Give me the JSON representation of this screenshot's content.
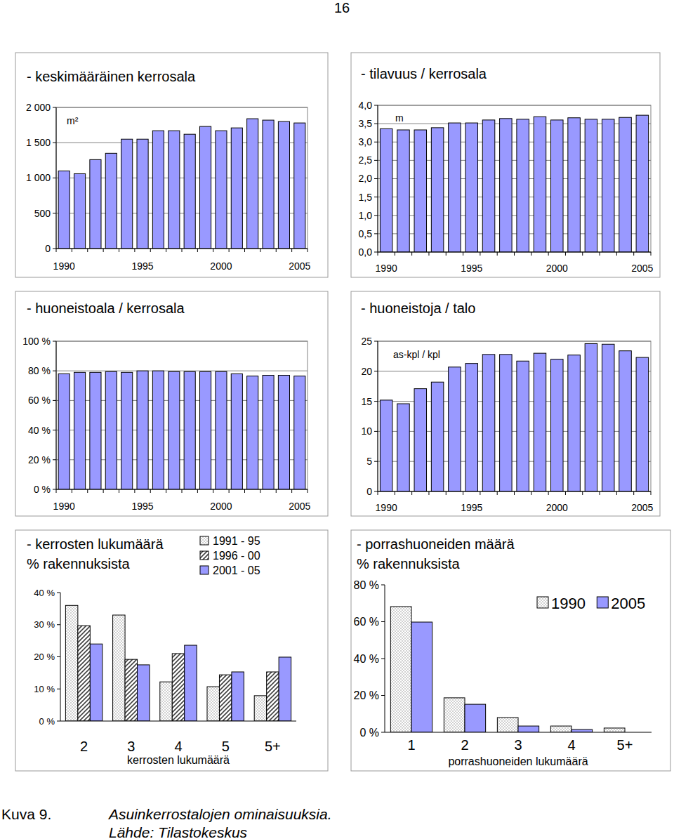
{
  "page": {
    "number": "16",
    "caption_label": "Kuva 9.",
    "caption": "Asuinkerrostalojen ominaisuuksia.",
    "source": "Lähde: Tilastokeskus"
  },
  "chart_data": [
    {
      "type": "bar",
      "title": "- keskimääräinen kerrosala",
      "y_label": "m²",
      "categories": [
        "1990",
        null,
        null,
        null,
        null,
        "1995",
        null,
        null,
        null,
        null,
        "2000",
        null,
        null,
        null,
        null,
        "2005"
      ],
      "values": [
        1100,
        1060,
        1260,
        1350,
        1550,
        1550,
        1670,
        1670,
        1620,
        1730,
        1670,
        1710,
        1840,
        1820,
        1800,
        1780
      ],
      "color": "#9999ff",
      "ylim": [
        0,
        2000
      ],
      "yticks": [
        0,
        500,
        {
          "value": 1000,
          "label": "1 000"
        },
        {
          "value": 1500,
          "label": "1 500"
        },
        {
          "value": 2000,
          "label": "2 000"
        }
      ],
      "grid": true
    },
    {
      "type": "bar",
      "title": "- tilavuus / kerrosala",
      "y_label": "m",
      "categories": [
        "1990",
        null,
        null,
        null,
        null,
        "1995",
        null,
        null,
        null,
        null,
        "2000",
        null,
        null,
        null,
        null,
        "2005"
      ],
      "values": [
        3.36,
        3.33,
        3.33,
        3.39,
        3.52,
        3.52,
        3.6,
        3.64,
        3.62,
        3.69,
        3.6,
        3.66,
        3.62,
        3.62,
        3.67,
        3.73
      ],
      "color": "#9999ff",
      "ylim": [
        0,
        4
      ],
      "yticks": [
        {
          "value": 0,
          "label": "0,0"
        },
        {
          "value": 0.5,
          "label": "0,5"
        },
        {
          "value": 1,
          "label": "1,0"
        },
        {
          "value": 1.5,
          "label": "1,5"
        },
        {
          "value": 2,
          "label": "2,0"
        },
        {
          "value": 2.5,
          "label": "2,5"
        },
        {
          "value": 3,
          "label": "3,0"
        },
        {
          "value": 3.5,
          "label": "3,5"
        },
        {
          "value": 4,
          "label": "4,0"
        }
      ],
      "grid": true
    },
    {
      "type": "bar",
      "title": "- huoneistoala / kerrosala",
      "categories": [
        "1990",
        null,
        null,
        null,
        null,
        "1995",
        null,
        null,
        null,
        null,
        "2000",
        null,
        null,
        null,
        null,
        "2005"
      ],
      "values": [
        78,
        79,
        79,
        79.5,
        79,
        80,
        80,
        79.5,
        79.5,
        79.5,
        79.5,
        78,
        76.5,
        77,
        77,
        76.5
      ],
      "color": "#9999ff",
      "ylim": [
        0,
        100
      ],
      "yticks": [
        {
          "value": 0,
          "label": "0 %"
        },
        {
          "value": 20,
          "label": "20 %"
        },
        {
          "value": 40,
          "label": "40 %"
        },
        {
          "value": 60,
          "label": "60 %"
        },
        {
          "value": 80,
          "label": "80 %"
        },
        {
          "value": 100,
          "label": "100 %"
        }
      ],
      "grid": true
    },
    {
      "type": "bar",
      "title": "- huoneistoja / talo",
      "y_label": "as-kpl / kpl",
      "categories": [
        "1990",
        null,
        null,
        null,
        null,
        "1995",
        null,
        null,
        null,
        null,
        "2000",
        null,
        null,
        null,
        null,
        "2005"
      ],
      "values": [
        15.2,
        14.6,
        17.1,
        18.2,
        20.7,
        21.3,
        22.8,
        22.8,
        21.7,
        23.0,
        22.0,
        22.7,
        24.6,
        24.5,
        23.4,
        22.3
      ],
      "color": "#9999ff",
      "ylim": [
        0,
        25
      ],
      "yticks": [
        0,
        5,
        10,
        15,
        20,
        25
      ],
      "grid": true
    },
    {
      "type": "bar",
      "title": "- kerrosten lukumäärä",
      "subtitle": "% rakennuksista",
      "x_label": "kerrosten lukumäärä",
      "categories": [
        "2",
        "3",
        "4",
        "5",
        "5+"
      ],
      "series": [
        {
          "name": "1991 - 95",
          "color": "#808080",
          "values": [
            36,
            33,
            12.2,
            10.7,
            7.9
          ]
        },
        {
          "name": "1996 - 00",
          "color": "#404040",
          "values": [
            29.7,
            19.2,
            21,
            14.4,
            15.3
          ]
        },
        {
          "name": "2001 - 05",
          "color": "#9999ff",
          "values": [
            24,
            17.5,
            23.6,
            15.3,
            19.9
          ]
        }
      ],
      "ylim": [
        0,
        40
      ],
      "yticks": [
        {
          "value": 0,
          "label": "0 %"
        },
        {
          "value": 10,
          "label": "10 %"
        },
        {
          "value": 20,
          "label": "20 %"
        },
        {
          "value": 30,
          "label": "30 %"
        },
        {
          "value": 40,
          "label": "40 %"
        }
      ],
      "grid": false,
      "legend": "top-right"
    },
    {
      "type": "bar",
      "title": "- porrashuoneiden määrä",
      "subtitle": "% rakennuksista",
      "x_label": "porrashuoneiden lukumäärä",
      "categories": [
        "1",
        "2",
        "3",
        "4",
        "5+"
      ],
      "series": [
        {
          "name": "1990",
          "color": "#808080",
          "values": [
            68.2,
            18.7,
            8,
            3.4,
            2.3
          ]
        },
        {
          "name": "2005",
          "color": "#9999ff",
          "values": [
            59.8,
            15.2,
            3.4,
            1.5,
            0
          ]
        }
      ],
      "ylim": [
        0,
        80
      ],
      "yticks": [
        {
          "value": 0,
          "label": "0 %"
        },
        {
          "value": 20,
          "label": "20 %"
        },
        {
          "value": 40,
          "label": "40 %"
        },
        {
          "value": 60,
          "label": "60 %"
        },
        {
          "value": 80,
          "label": "80 %"
        }
      ],
      "grid": false,
      "legend": "top-right"
    }
  ]
}
